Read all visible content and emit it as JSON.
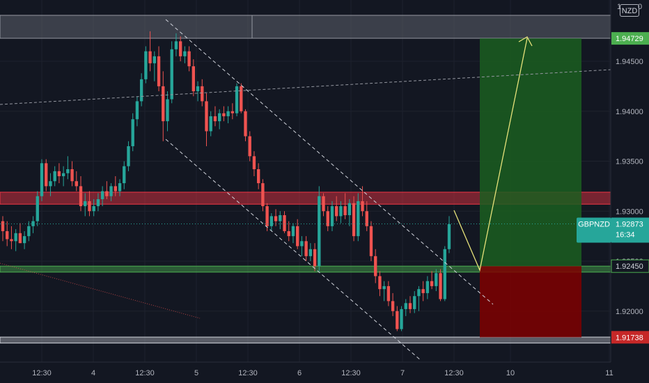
{
  "symbol": "GBPNZD",
  "currency": "NZD",
  "colors": {
    "background": "#131722",
    "up": "#26a69a",
    "down": "#ef5350",
    "grid": "#1e222d",
    "axis_text": "#b2b5be",
    "resistance_zone": "#f23645",
    "support_zone": "#4caf50",
    "gray_zone": "#787b86",
    "target_fill": "#1b5e20",
    "stop_fill": "#7f0000",
    "arrow": "#e6e27a"
  },
  "chart_data": {
    "type": "candlestick",
    "y_axis": {
      "ticks": [
        "1.94500",
        "1.94000",
        "1.93500",
        "1.93000",
        "1.92500",
        "1.92000"
      ],
      "partial_top_tick": "1",
      "ylim": [
        1.9153,
        1.9513
      ]
    },
    "x_axis": {
      "ticks": [
        "12:30",
        "4",
        "12:30",
        "5",
        "12:30",
        "6",
        "12:30",
        "7",
        "12:30",
        "10",
        "11"
      ]
    },
    "price_tags": [
      {
        "label": "1.94729",
        "value": 1.94729,
        "kind": "target"
      },
      {
        "label": "1.92873",
        "value": 1.92873,
        "kind": "last",
        "symbol_label": "GBPNZD",
        "countdown": "16:34"
      },
      {
        "label": "1.92450",
        "value": 1.9245,
        "kind": "entry"
      },
      {
        "label": "1.91738",
        "value": 1.91738,
        "kind": "stop"
      }
    ],
    "zones": [
      {
        "name": "upper-gray-zone",
        "from": 1.9473,
        "to": 1.9496
      },
      {
        "name": "resistance-zone",
        "from": 1.9307,
        "to": 1.9319
      },
      {
        "name": "support-zone",
        "from": 1.9239,
        "to": 1.9245
      },
      {
        "name": "lower-gray-zone",
        "from": 1.9168,
        "to": 1.9174
      }
    ],
    "position": {
      "entry": 1.9245,
      "target": 1.94729,
      "stop": 1.91738
    },
    "candle_ohlc": [
      [
        1.929,
        1.9295,
        1.927,
        1.928
      ],
      [
        1.928,
        1.929,
        1.9265,
        1.9272
      ],
      [
        1.9272,
        1.9285,
        1.9262,
        1.927
      ],
      [
        1.927,
        1.9282,
        1.926,
        1.9278
      ],
      [
        1.9278,
        1.9288,
        1.9268,
        1.9268
      ],
      [
        1.9268,
        1.928,
        1.9262,
        1.9275
      ],
      [
        1.9275,
        1.929,
        1.927,
        1.9285
      ],
      [
        1.9285,
        1.9295,
        1.9278,
        1.929
      ],
      [
        1.929,
        1.932,
        1.9285,
        1.9315
      ],
      [
        1.9315,
        1.9352,
        1.931,
        1.9348
      ],
      [
        1.9348,
        1.9352,
        1.932,
        1.9325
      ],
      [
        1.9325,
        1.9338,
        1.9315,
        1.933
      ],
      [
        1.933,
        1.9345,
        1.9325,
        1.934
      ],
      [
        1.934,
        1.9348,
        1.9328,
        1.9335
      ],
      [
        1.9335,
        1.9345,
        1.9325,
        1.9338
      ],
      [
        1.9338,
        1.9355,
        1.9332,
        1.9342
      ],
      [
        1.9342,
        1.935,
        1.9325,
        1.933
      ],
      [
        1.933,
        1.934,
        1.932,
        1.9325
      ],
      [
        1.9325,
        1.9335,
        1.93,
        1.9305
      ],
      [
        1.9305,
        1.9318,
        1.9295,
        1.931
      ],
      [
        1.931,
        1.932,
        1.9295,
        1.93
      ],
      [
        1.93,
        1.9312,
        1.9295,
        1.9305
      ],
      [
        1.9305,
        1.9318,
        1.93,
        1.9312
      ],
      [
        1.9312,
        1.9325,
        1.9305,
        1.932
      ],
      [
        1.932,
        1.933,
        1.9312,
        1.9315
      ],
      [
        1.9315,
        1.9328,
        1.931,
        1.9325
      ],
      [
        1.9325,
        1.9335,
        1.9315,
        1.932
      ],
      [
        1.932,
        1.9332,
        1.9315,
        1.9328
      ],
      [
        1.9328,
        1.935,
        1.9322,
        1.9345
      ],
      [
        1.9345,
        1.937,
        1.934,
        1.9365
      ],
      [
        1.9365,
        1.9398,
        1.936,
        1.9392
      ],
      [
        1.9392,
        1.9415,
        1.9385,
        1.941
      ],
      [
        1.941,
        1.9438,
        1.9405,
        1.9432
      ],
      [
        1.9432,
        1.9465,
        1.9428,
        1.946
      ],
      [
        1.946,
        1.948,
        1.944,
        1.9448
      ],
      [
        1.9448,
        1.946,
        1.943,
        1.9455
      ],
      [
        1.9455,
        1.9465,
        1.942,
        1.9425
      ],
      [
        1.9425,
        1.944,
        1.937,
        1.939
      ],
      [
        1.939,
        1.942,
        1.938,
        1.9412
      ],
      [
        1.9412,
        1.947,
        1.9408,
        1.9462
      ],
      [
        1.9462,
        1.9478,
        1.9455,
        1.947
      ],
      [
        1.947,
        1.9475,
        1.945,
        1.9455
      ],
      [
        1.9455,
        1.9465,
        1.9448,
        1.946
      ],
      [
        1.946,
        1.9465,
        1.944,
        1.9445
      ],
      [
        1.9445,
        1.9452,
        1.9415,
        1.942
      ],
      [
        1.942,
        1.943,
        1.941,
        1.9425
      ],
      [
        1.9425,
        1.9432,
        1.9405,
        1.941
      ],
      [
        1.941,
        1.9418,
        1.9365,
        1.938
      ],
      [
        1.938,
        1.94,
        1.9375,
        1.9395
      ],
      [
        1.9395,
        1.9405,
        1.9385,
        1.939
      ],
      [
        1.939,
        1.9402,
        1.9382,
        1.9398
      ],
      [
        1.9398,
        1.9405,
        1.939,
        1.9395
      ],
      [
        1.9395,
        1.9405,
        1.9388,
        1.94
      ],
      [
        1.94,
        1.9408,
        1.9392,
        1.9398
      ],
      [
        1.9398,
        1.9428,
        1.9395,
        1.9425
      ],
      [
        1.9425,
        1.9428,
        1.9398,
        1.94
      ],
      [
        1.94,
        1.9402,
        1.937,
        1.9375
      ],
      [
        1.9375,
        1.938,
        1.935,
        1.9355
      ],
      [
        1.9355,
        1.936,
        1.9335,
        1.9342
      ],
      [
        1.9342,
        1.9348,
        1.9322,
        1.9328
      ],
      [
        1.9328,
        1.9332,
        1.93,
        1.9305
      ],
      [
        1.9305,
        1.9308,
        1.928,
        1.9285
      ],
      [
        1.9285,
        1.9298,
        1.928,
        1.9295
      ],
      [
        1.9295,
        1.9302,
        1.9285,
        1.929
      ],
      [
        1.929,
        1.93,
        1.9282,
        1.9296
      ],
      [
        1.9296,
        1.93,
        1.9278,
        1.928
      ],
      [
        1.928,
        1.929,
        1.927,
        1.9275
      ],
      [
        1.9275,
        1.9288,
        1.9268,
        1.9285
      ],
      [
        1.9285,
        1.9292,
        1.9262,
        1.9265
      ],
      [
        1.9265,
        1.9275,
        1.9255,
        1.927
      ],
      [
        1.927,
        1.9275,
        1.925,
        1.9255
      ],
      [
        1.9255,
        1.9268,
        1.925,
        1.9262
      ],
      [
        1.9262,
        1.9268,
        1.924,
        1.9245
      ],
      [
        1.9245,
        1.9325,
        1.924,
        1.9315
      ],
      [
        1.9315,
        1.9318,
        1.9295,
        1.93
      ],
      [
        1.93,
        1.9305,
        1.928,
        1.9285
      ],
      [
        1.9285,
        1.931,
        1.928,
        1.9305
      ],
      [
        1.9305,
        1.9315,
        1.929,
        1.9295
      ],
      [
        1.9295,
        1.931,
        1.9288,
        1.9305
      ],
      [
        1.9305,
        1.9318,
        1.9292,
        1.9296
      ],
      [
        1.9296,
        1.9312,
        1.9285,
        1.9308
      ],
      [
        1.9308,
        1.9315,
        1.927,
        1.9275
      ],
      [
        1.9275,
        1.9318,
        1.927,
        1.931
      ],
      [
        1.931,
        1.9325,
        1.9295,
        1.93
      ],
      [
        1.93,
        1.931,
        1.928,
        1.9285
      ],
      [
        1.9285,
        1.929,
        1.925,
        1.9255
      ],
      [
        1.9255,
        1.9262,
        1.9228,
        1.9235
      ],
      [
        1.9235,
        1.924,
        1.9215,
        1.9222
      ],
      [
        1.9222,
        1.923,
        1.921,
        1.9225
      ],
      [
        1.9225,
        1.923,
        1.9205,
        1.921
      ],
      [
        1.921,
        1.9218,
        1.9195,
        1.92
      ],
      [
        1.92,
        1.9205,
        1.918,
        1.9182
      ],
      [
        1.9182,
        1.9205,
        1.918,
        1.9202
      ],
      [
        1.9202,
        1.9212,
        1.9195,
        1.9208
      ],
      [
        1.9208,
        1.9215,
        1.9198,
        1.9202
      ],
      [
        1.9202,
        1.922,
        1.9198,
        1.9215
      ],
      [
        1.9215,
        1.9225,
        1.92,
        1.9222
      ],
      [
        1.9222,
        1.923,
        1.921,
        1.9218
      ],
      [
        1.9218,
        1.9235,
        1.9212,
        1.923
      ],
      [
        1.923,
        1.924,
        1.9222,
        1.9225
      ],
      [
        1.9225,
        1.9242,
        1.922,
        1.9238
      ],
      [
        1.9238,
        1.9242,
        1.921,
        1.9212
      ],
      [
        1.9212,
        1.9265,
        1.921,
        1.9262
      ],
      [
        1.9262,
        1.9295,
        1.9258,
        1.9287
      ]
    ]
  }
}
